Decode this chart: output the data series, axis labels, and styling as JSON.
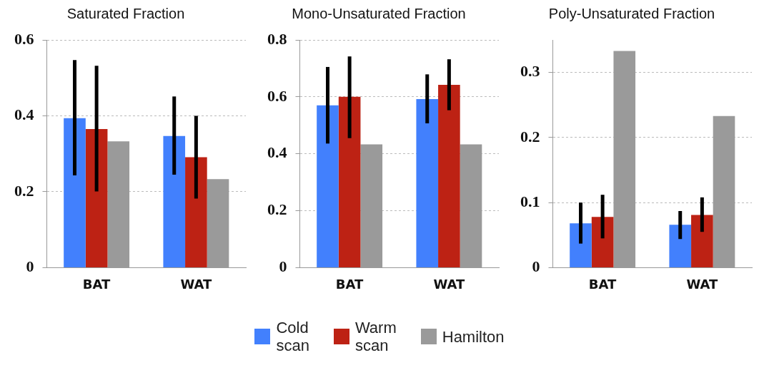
{
  "chart_data": [
    {
      "type": "bar",
      "title": "Saturated Fraction",
      "categories": [
        "BAT",
        "WAT"
      ],
      "ylim": [
        0,
        0.6
      ],
      "yticks": [
        0,
        0.2,
        0.4,
        0.6
      ],
      "grid": "y",
      "legend": "bottom",
      "series": [
        {
          "name": "Cold scan",
          "color": "#4280fd",
          "values": [
            0.394,
            0.347
          ],
          "errors": [
            [
              0.243,
              0.547
            ],
            [
              0.245,
              0.451
            ]
          ]
        },
        {
          "name": "Warm scan",
          "color": "#bd2214",
          "values": [
            0.365,
            0.291
          ],
          "errors": [
            [
              0.201,
              0.532
            ],
            [
              0.182,
              0.4
            ]
          ]
        },
        {
          "name": "Hamilton",
          "color": "#9a9a9a",
          "values": [
            0.333,
            0.233
          ]
        }
      ]
    },
    {
      "type": "bar",
      "title": "Mono-Unsaturated Fraction",
      "categories": [
        "BAT",
        "WAT"
      ],
      "ylim": [
        0,
        0.8
      ],
      "yticks": [
        0,
        0.2,
        0.4,
        0.6,
        0.8
      ],
      "grid": "y",
      "series": [
        {
          "color": "#4280fd",
          "values": [
            0.57,
            0.592
          ],
          "errors": [
            [
              0.436,
              0.705
            ],
            [
              0.507,
              0.679
            ]
          ]
        },
        {
          "color": "#bd2214",
          "values": [
            0.6,
            0.642
          ],
          "errors": [
            [
              0.455,
              0.742
            ],
            [
              0.553,
              0.732
            ]
          ]
        },
        {
          "color": "#9a9a9a",
          "values": [
            0.433,
            0.433
          ]
        }
      ]
    },
    {
      "type": "bar",
      "title": "Poly-Unsaturated Fraction",
      "categories": [
        "BAT",
        "WAT"
      ],
      "ylim": [
        0,
        0.35
      ],
      "yticks": [
        0,
        0.1,
        0.2,
        0.3
      ],
      "grid": "y",
      "series": [
        {
          "color": "#4280fd",
          "values": [
            0.068,
            0.066
          ],
          "errors": [
            [
              0.037,
              0.1
            ],
            [
              0.044,
              0.087
            ]
          ]
        },
        {
          "color": "#bd2214",
          "values": [
            0.078,
            0.081
          ],
          "errors": [
            [
              0.045,
              0.112
            ],
            [
              0.055,
              0.108
            ]
          ]
        },
        {
          "color": "#9a9a9a",
          "values": [
            0.333,
            0.233
          ]
        }
      ]
    }
  ]
}
